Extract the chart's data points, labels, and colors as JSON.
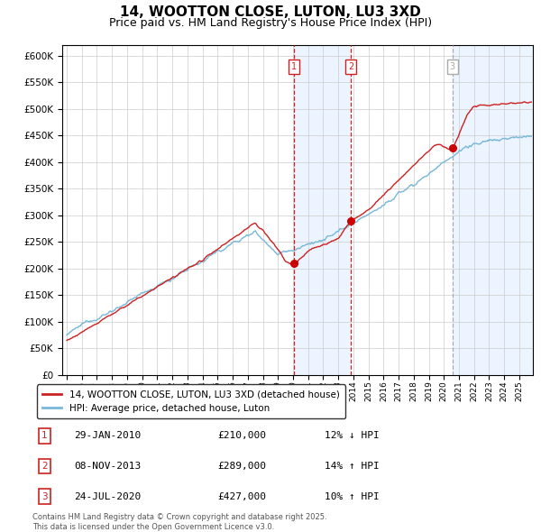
{
  "title": "14, WOOTTON CLOSE, LUTON, LU3 3XD",
  "subtitle": "Price paid vs. HM Land Registry's House Price Index (HPI)",
  "title_fontsize": 11,
  "subtitle_fontsize": 9,
  "background_color": "#ffffff",
  "plot_bg_color": "#ffffff",
  "grid_color": "#cccccc",
  "hpi_line_color": "#7ab8d9",
  "price_line_color": "#cc2222",
  "sale_marker_color": "#cc0000",
  "vline_color_sale": "#cc2222",
  "vline_color_3": "#aaaaaa",
  "shade_color": "#ddeeff",
  "ylim": [
    0,
    620000
  ],
  "yticks": [
    0,
    50000,
    100000,
    150000,
    200000,
    250000,
    300000,
    350000,
    400000,
    450000,
    500000,
    550000,
    600000
  ],
  "legend_label_price": "14, WOOTTON CLOSE, LUTON, LU3 3XD (detached house)",
  "legend_label_hpi": "HPI: Average price, detached house, Luton",
  "sale1_date": "29-JAN-2010",
  "sale1_price": 210000,
  "sale1_pct": "12%",
  "sale1_dir": "↓",
  "sale2_date": "08-NOV-2013",
  "sale2_price": 289000,
  "sale2_pct": "14%",
  "sale2_dir": "↑",
  "sale3_date": "24-JUL-2020",
  "sale3_price": 427000,
  "sale3_pct": "10%",
  "sale3_dir": "↑",
  "footnote": "Contains HM Land Registry data © Crown copyright and database right 2025.\nThis data is licensed under the Open Government Licence v3.0.",
  "sale1_x": 2010.08,
  "sale2_x": 2013.85,
  "sale3_x": 2020.56,
  "xmin": 1994.7,
  "xmax": 2025.9
}
